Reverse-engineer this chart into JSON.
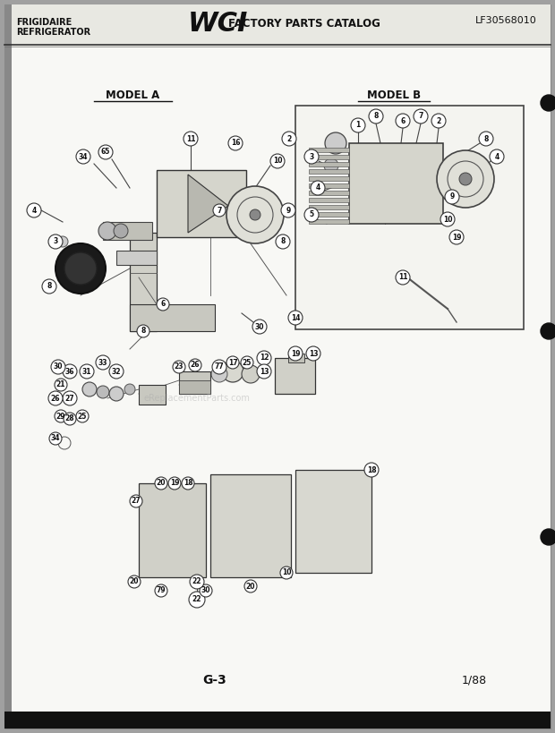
{
  "page_bg": "#f0f0ec",
  "content_bg": "#f8f8f5",
  "header_bg": "#e8e8e2",
  "border_color": "#1a1a1a",
  "text_color": "#111111",
  "gray_color": "#888888",
  "light_gray": "#cccccc",
  "dark_gray": "#444444",
  "header_left_line1": "FRIGIDAIRE",
  "header_left_line2": "REFRIGERATOR",
  "header_center_logo": "WCI",
  "header_center_text": "FACTORY PARTS CATALOG",
  "header_right": "LF30568010",
  "footer_left": "G-3",
  "footer_right": "1/88",
  "model_a_label": "MODEL A",
  "model_b_label": "MODEL B",
  "watermark": "eReplacementParts.com",
  "dot_color": "#111111",
  "scan_noise_color": "#d0d0cc"
}
